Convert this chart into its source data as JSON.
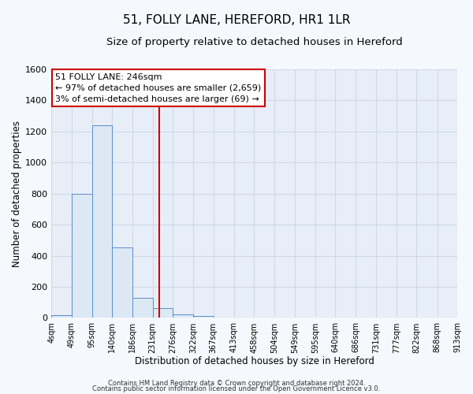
{
  "title": "51, FOLLY LANE, HEREFORD, HR1 1LR",
  "subtitle": "Size of property relative to detached houses in Hereford",
  "xlabel": "Distribution of detached houses by size in Hereford",
  "ylabel": "Number of detached properties",
  "bin_edges": [
    4,
    49,
    95,
    140,
    186,
    231,
    276,
    322,
    367,
    413,
    458,
    504,
    549,
    595,
    640,
    686,
    731,
    777,
    822,
    868,
    913
  ],
  "bin_counts": [
    20,
    800,
    1240,
    455,
    130,
    65,
    25,
    12,
    0,
    0,
    0,
    0,
    0,
    0,
    0,
    0,
    0,
    0,
    0,
    0
  ],
  "bar_facecolor": "#dce9f5",
  "bar_edgecolor": "#5b8dc8",
  "vline_x": 246,
  "vline_color": "#cc0000",
  "ylim": [
    0,
    1600
  ],
  "yticks": [
    0,
    200,
    400,
    600,
    800,
    1000,
    1200,
    1400,
    1600
  ],
  "annotation_box_text": "51 FOLLY LANE: 246sqm\n← 97% of detached houses are smaller (2,659)\n3% of semi-detached houses are larger (69) →",
  "footer_line1": "Contains HM Land Registry data © Crown copyright and database right 2024.",
  "footer_line2": "Contains public sector information licensed under the Open Government Licence v3.0.",
  "plot_bg_color": "#e8eef8",
  "fig_bg_color": "#f5f8fd",
  "grid_color": "#d0d8e8",
  "title_fontsize": 11,
  "subtitle_fontsize": 9.5,
  "tick_labels": [
    "4sqm",
    "49sqm",
    "95sqm",
    "140sqm",
    "186sqm",
    "231sqm",
    "276sqm",
    "322sqm",
    "367sqm",
    "413sqm",
    "458sqm",
    "504sqm",
    "549sqm",
    "595sqm",
    "640sqm",
    "686sqm",
    "731sqm",
    "777sqm",
    "822sqm",
    "868sqm",
    "913sqm"
  ]
}
